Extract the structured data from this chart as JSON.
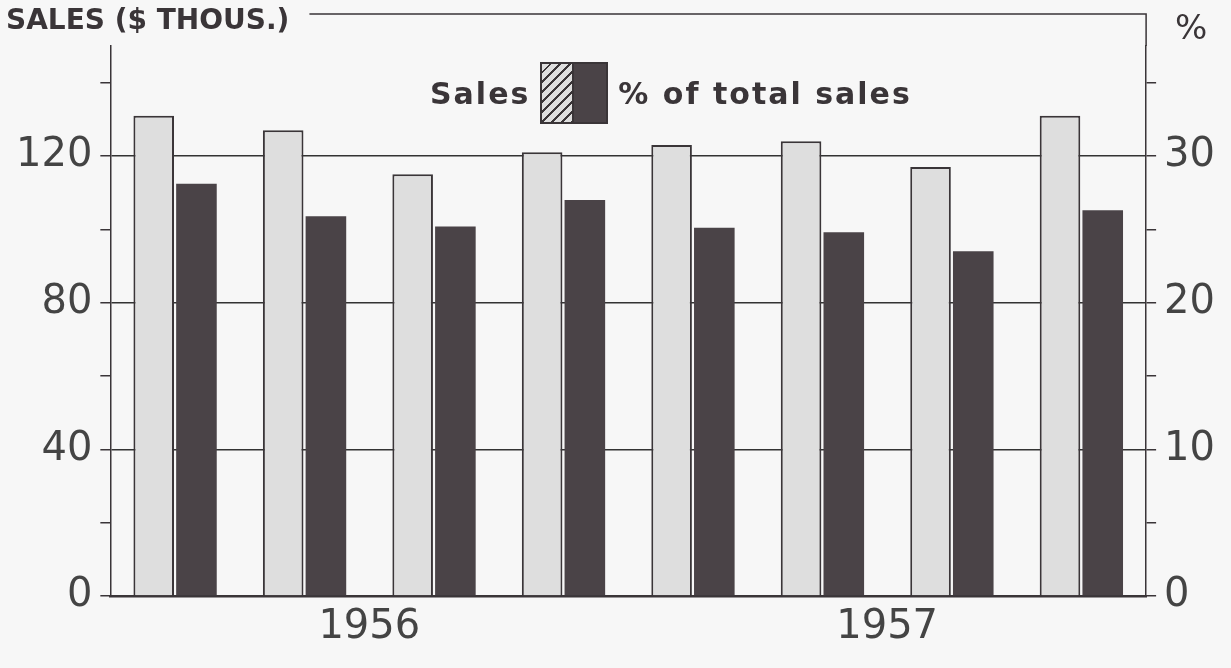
{
  "chart_data": {
    "type": "bar",
    "ylabel": "SALES ($ THOUS.)",
    "y2label": "%",
    "categories": [
      null,
      null,
      null,
      null,
      null,
      null,
      null,
      null
    ],
    "series": [
      {
        "name": "Sales",
        "color": "#dedede",
        "values": [
          131,
          127,
          115,
          121,
          123,
          124,
          117,
          131
        ]
      },
      {
        "name": "% of total sales",
        "color": "#4a4347",
        "axis": "y2",
        "values": [
          28.1,
          25.9,
          25.2,
          27.0,
          25.1,
          24.8,
          23.5,
          26.3
        ]
      }
    ],
    "ylim": [
      0,
      150
    ],
    "yticks": [
      0,
      {
        "value": 20,
        "label": null
      },
      40,
      {
        "value": 60,
        "label": null
      },
      80,
      {
        "value": 100,
        "label": null
      },
      120,
      {
        "value": 140,
        "label": null
      }
    ],
    "y2lim": [
      0,
      37.5
    ],
    "y2ticks": [
      0,
      {
        "value": 5,
        "label": null
      },
      10,
      {
        "value": 15,
        "label": null
      },
      20,
      {
        "value": 25,
        "label": null
      },
      30,
      {
        "value": 35,
        "label": null
      }
    ],
    "grid": "y",
    "legend": "top",
    "annotations": [
      "1956",
      "1957"
    ]
  }
}
